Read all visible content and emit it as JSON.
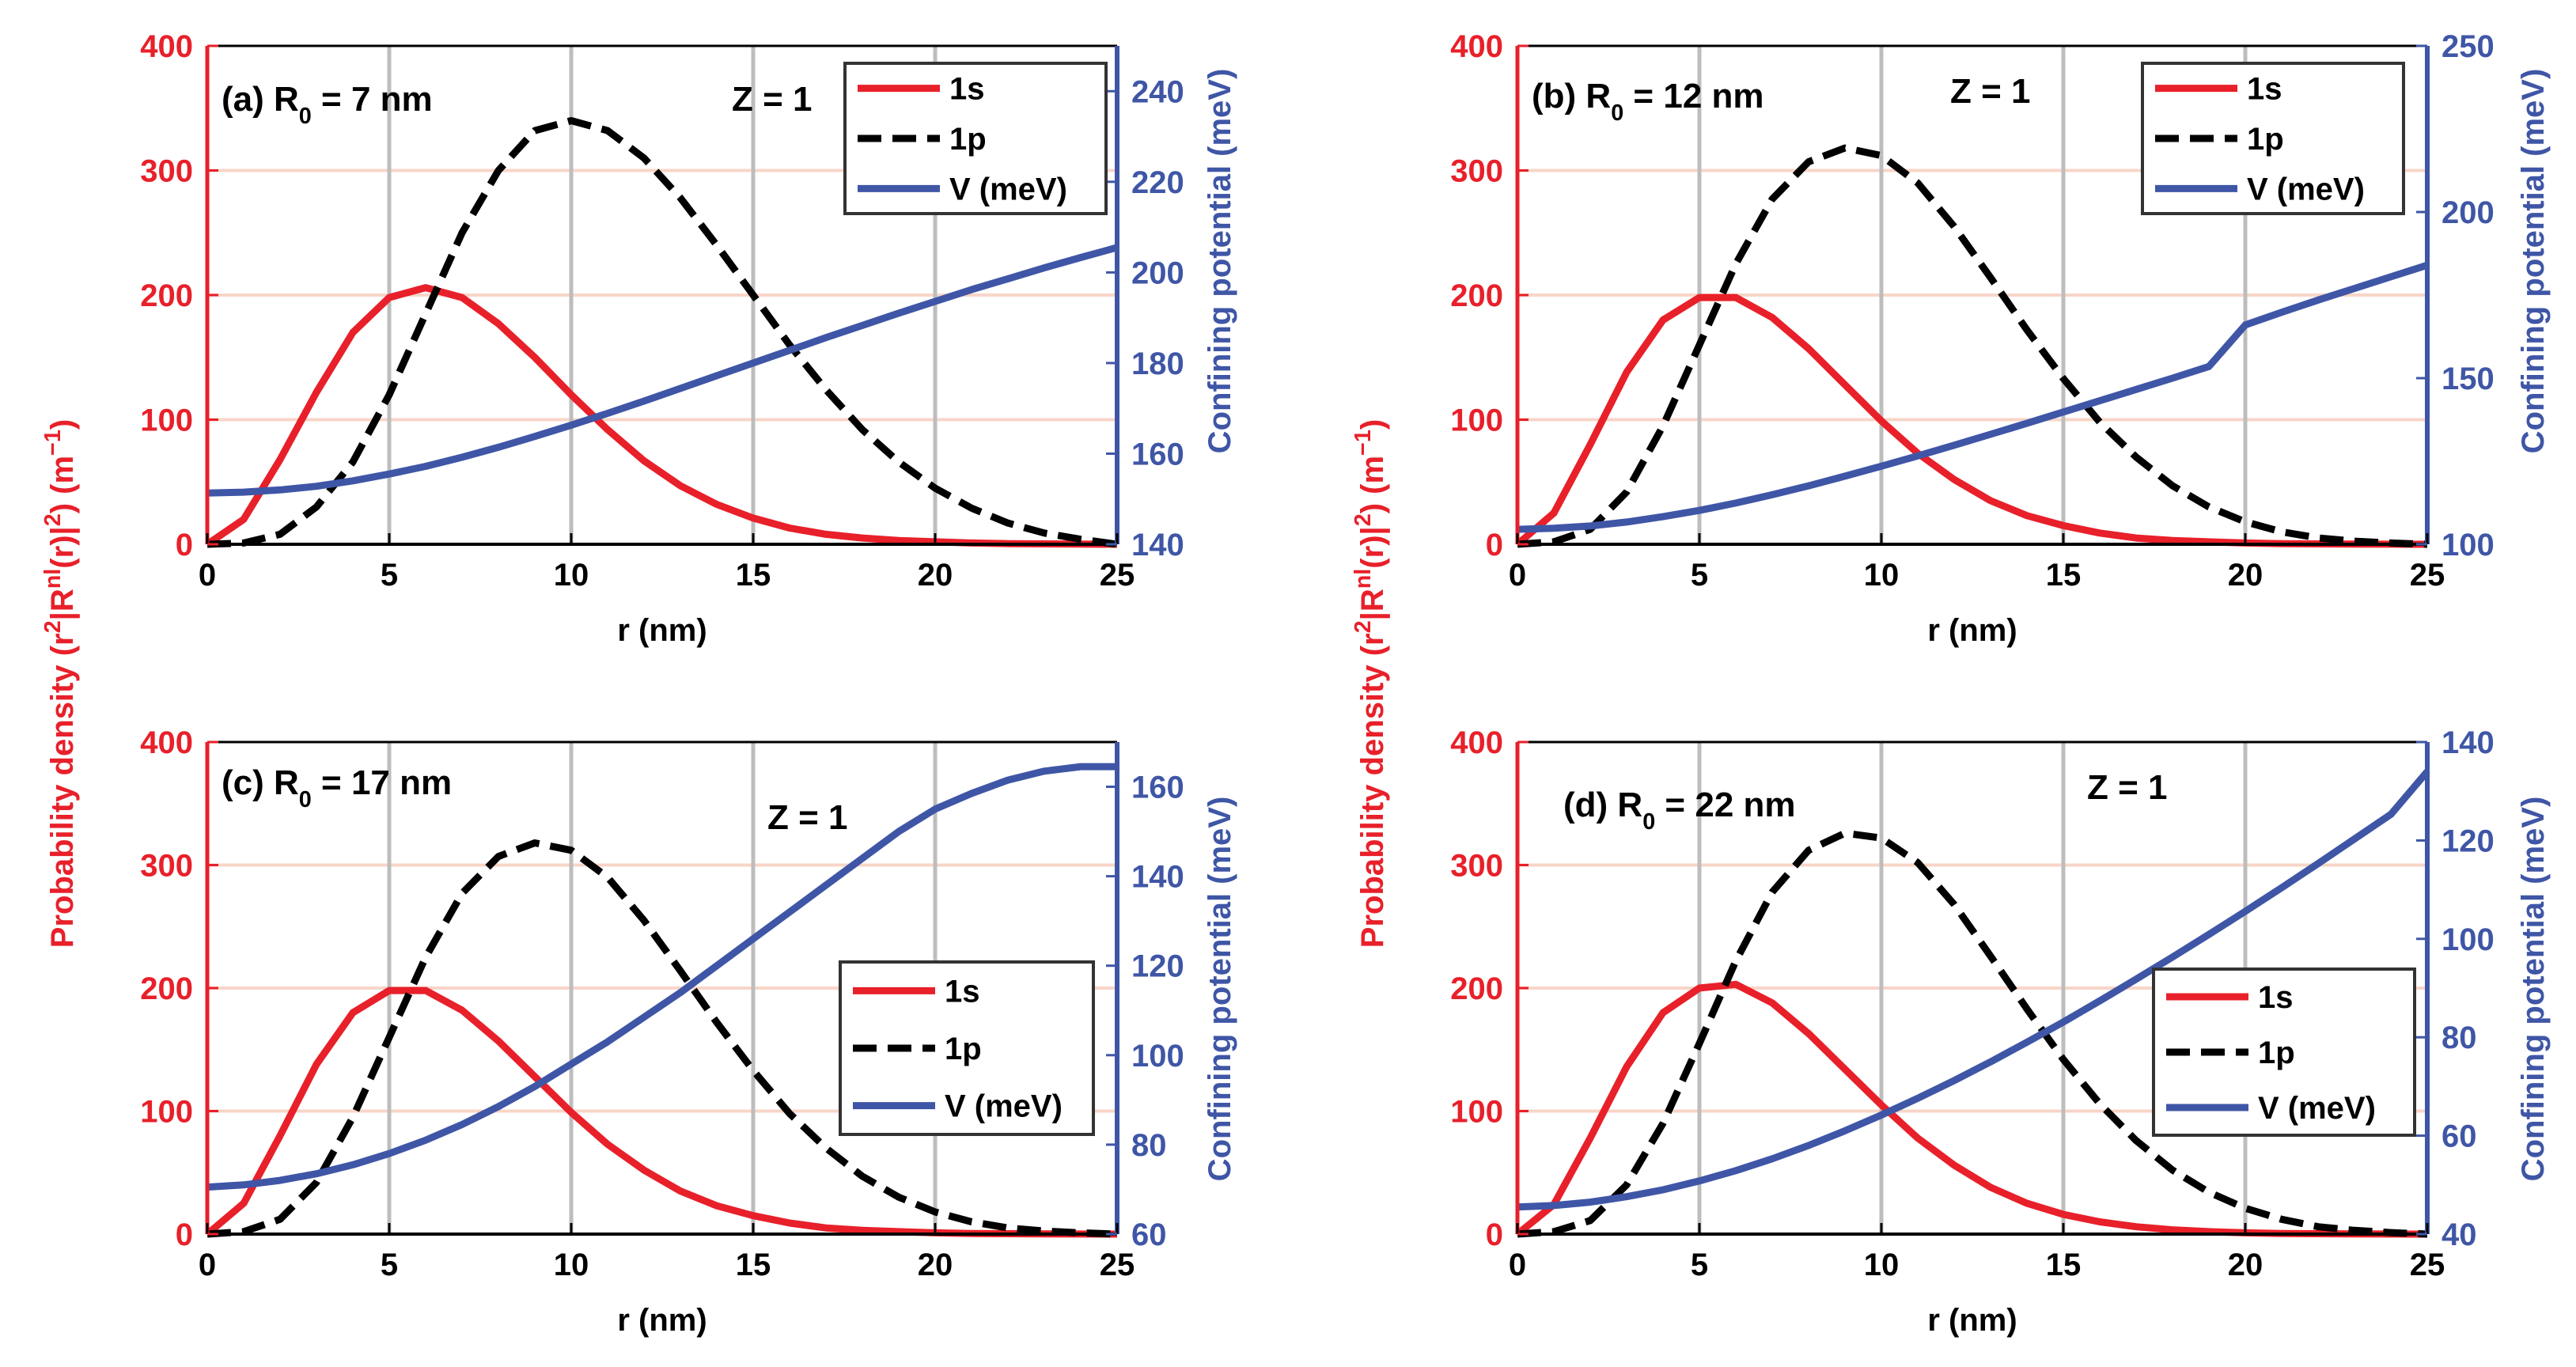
{
  "figure": {
    "left_ylabel_parts": [
      "Probability density (r",
      "2",
      "|R",
      "nl",
      "(r)|",
      "2",
      ") (m",
      "−1",
      ")"
    ],
    "right_ylabel": "Confining potential (meV)",
    "colors": {
      "s1": "#e8202a",
      "p1": "#000000",
      "v": "#3f56a6",
      "left_axis": "#e8202a",
      "right_axis": "#3f56a6",
      "vgrid": "#bdbdbd",
      "hgrid": "#f8d5c8"
    }
  },
  "chart_data": [
    {
      "type": "line",
      "panel": "(a)",
      "label_parts": [
        "(a) R",
        "0",
        " = 7 nm"
      ],
      "z_label": "Z = 1",
      "xlabel": "r (nm)",
      "xlim": [
        0,
        25
      ],
      "xticks": [
        0,
        5,
        10,
        15,
        20,
        25
      ],
      "ylim_left": [
        0,
        400
      ],
      "yticks_left": [
        0,
        100,
        200,
        300,
        400
      ],
      "ylim_right": [
        140,
        250
      ],
      "yticks_right": [
        140,
        160,
        180,
        200,
        220,
        240
      ],
      "legend": [
        "1s",
        "1p",
        "V (meV)"
      ],
      "legend_position": "top-right",
      "grid": true,
      "x": [
        0,
        1,
        2,
        3,
        4,
        5,
        6,
        7,
        8,
        9,
        10,
        11,
        12,
        13,
        14,
        15,
        16,
        17,
        18,
        19,
        20,
        21,
        22,
        23,
        24,
        25
      ],
      "series": [
        {
          "name": "1s",
          "values": [
            0,
            20,
            68,
            122,
            170,
            198,
            206,
            198,
            177,
            150,
            120,
            92,
            67,
            47,
            32,
            21,
            13,
            8,
            5,
            3,
            2,
            1,
            0.5,
            0.3,
            0.1,
            0
          ]
        },
        {
          "name": "1p",
          "values": [
            0,
            1,
            8,
            30,
            66,
            120,
            185,
            250,
            300,
            332,
            340,
            332,
            310,
            278,
            240,
            200,
            160,
            124,
            92,
            66,
            45,
            29,
            17,
            9,
            4,
            0
          ]
        },
        {
          "name": "V (meV)",
          "axis": "right",
          "values": [
            151.3,
            151.5,
            152,
            152.8,
            154,
            155.5,
            157.2,
            159.2,
            161.4,
            163.8,
            166.3,
            168.9,
            171.6,
            174.4,
            177.2,
            180,
            182.8,
            185.6,
            188.3,
            191,
            193.6,
            196.2,
            198.6,
            201,
            203.3,
            205.5
          ]
        }
      ]
    },
    {
      "type": "line",
      "panel": "(b)",
      "label_parts": [
        "(b) R",
        "0",
        " = 12 nm"
      ],
      "z_label": "Z = 1",
      "xlabel": "r (nm)",
      "xlim": [
        0,
        25
      ],
      "xticks": [
        0,
        5,
        10,
        15,
        20,
        25
      ],
      "ylim_left": [
        0,
        400
      ],
      "yticks_left": [
        0,
        100,
        200,
        300,
        400
      ],
      "ylim_right": [
        100,
        250
      ],
      "yticks_right": [
        100,
        150,
        200,
        250
      ],
      "legend": [
        "1s",
        "1p",
        "V (meV)"
      ],
      "legend_position": "top-right",
      "grid": true,
      "x": [
        0,
        1,
        2,
        3,
        4,
        5,
        6,
        7,
        8,
        9,
        10,
        11,
        12,
        13,
        14,
        15,
        16,
        17,
        18,
        19,
        20,
        21,
        22,
        23,
        24,
        25
      ],
      "series": [
        {
          "name": "1s",
          "values": [
            0,
            25,
            80,
            138,
            180,
            198,
            198,
            182,
            157,
            128,
            99,
            73,
            52,
            35,
            23,
            15,
            9,
            5,
            3,
            2,
            1,
            0.5,
            0.3,
            0.1,
            0.05,
            0
          ]
        },
        {
          "name": "1p",
          "values": [
            0,
            2,
            12,
            42,
            95,
            160,
            225,
            277,
            307,
            318,
            312,
            290,
            255,
            214,
            172,
            133,
            98,
            70,
            47,
            30,
            18,
            10,
            5,
            2.5,
            1,
            0
          ]
        },
        {
          "name": "V (meV)",
          "axis": "right",
          "values": [
            104.5,
            104.8,
            105.5,
            106.7,
            108.3,
            110.2,
            112.4,
            114.9,
            117.6,
            120.5,
            123.5,
            126.6,
            129.8,
            133.1,
            136.4,
            139.8,
            143.2,
            146.6,
            150,
            153.5,
            166,
            169.8,
            173.5,
            177,
            180.5,
            184
          ]
        }
      ]
    },
    {
      "type": "line",
      "panel": "(c)",
      "label_parts": [
        "(c) R",
        "0",
        " = 17 nm"
      ],
      "z_label": "Z = 1",
      "xlabel": "r (nm)",
      "xlim": [
        0,
        25
      ],
      "xticks": [
        0,
        5,
        10,
        15,
        20,
        25
      ],
      "ylim_left": [
        0,
        400
      ],
      "yticks_left": [
        0,
        100,
        200,
        300,
        400
      ],
      "ylim_right": [
        60,
        170
      ],
      "yticks_right": [
        60,
        80,
        100,
        120,
        140,
        160
      ],
      "legend": [
        "1s",
        "1p",
        "V (meV)"
      ],
      "legend_position": "right",
      "grid": true,
      "x": [
        0,
        1,
        2,
        3,
        4,
        5,
        6,
        7,
        8,
        9,
        10,
        11,
        12,
        13,
        14,
        15,
        16,
        17,
        18,
        19,
        20,
        21,
        22,
        23,
        24,
        25
      ],
      "series": [
        {
          "name": "1s",
          "values": [
            0,
            25,
            80,
            138,
            180,
            198,
            198,
            182,
            157,
            128,
            99,
            73,
            52,
            35,
            23,
            15,
            9,
            5,
            3,
            2,
            1,
            0.5,
            0.3,
            0.1,
            0.05,
            0
          ]
        },
        {
          "name": "1p",
          "values": [
            0,
            2,
            12,
            42,
            95,
            160,
            225,
            277,
            307,
            318,
            312,
            290,
            255,
            214,
            172,
            133,
            98,
            70,
            47,
            30,
            18,
            10,
            5,
            2.5,
            1,
            0
          ]
        },
        {
          "name": "V (meV)",
          "axis": "right",
          "values": [
            70.5,
            71,
            72,
            73.5,
            75.5,
            78,
            81,
            84.5,
            88.5,
            93,
            98,
            103,
            108.5,
            114,
            120,
            126,
            132,
            138,
            144,
            150,
            155,
            158.5,
            161.5,
            163.5,
            164.5,
            164.5
          ]
        }
      ]
    },
    {
      "type": "line",
      "panel": "(d)",
      "label_parts": [
        "(d) R",
        "0",
        " = 22 nm"
      ],
      "z_label": "Z = 1",
      "xlabel": "r (nm)",
      "xlim": [
        0,
        25
      ],
      "xticks": [
        0,
        5,
        10,
        15,
        20,
        25
      ],
      "ylim_left": [
        0,
        400
      ],
      "yticks_left": [
        0,
        100,
        200,
        300,
        400
      ],
      "ylim_right": [
        40,
        140
      ],
      "yticks_right": [
        40,
        60,
        80,
        100,
        120,
        140
      ],
      "legend": [
        "1s",
        "1p",
        "V (meV)"
      ],
      "legend_position": "right",
      "grid": true,
      "x": [
        0,
        1,
        2,
        3,
        4,
        5,
        6,
        7,
        8,
        9,
        10,
        11,
        12,
        13,
        14,
        15,
        16,
        17,
        18,
        19,
        20,
        21,
        22,
        23,
        24,
        25
      ],
      "series": [
        {
          "name": "1s",
          "values": [
            0,
            24,
            78,
            136,
            180,
            200,
            203,
            188,
            163,
            134,
            105,
            78,
            56,
            38,
            25,
            16,
            10,
            6,
            3.5,
            2,
            1,
            0.5,
            0.3,
            0.1,
            0.05,
            0
          ]
        },
        {
          "name": "1p",
          "values": [
            0,
            2,
            11,
            40,
            90,
            155,
            222,
            278,
            312,
            326,
            322,
            302,
            268,
            226,
            183,
            142,
            106,
            76,
            52,
            34,
            21,
            12,
            6,
            3,
            1.2,
            0
          ]
        },
        {
          "name": "V (meV)",
          "axis": "right",
          "values": [
            45.5,
            45.8,
            46.5,
            47.6,
            49,
            50.8,
            52.9,
            55.3,
            58,
            61,
            64.2,
            67.6,
            71.2,
            75,
            79,
            83.1,
            87.4,
            91.8,
            96.3,
            100.9,
            105.6,
            110.4,
            115.3,
            120.3,
            125.3,
            134
          ]
        }
      ]
    }
  ]
}
